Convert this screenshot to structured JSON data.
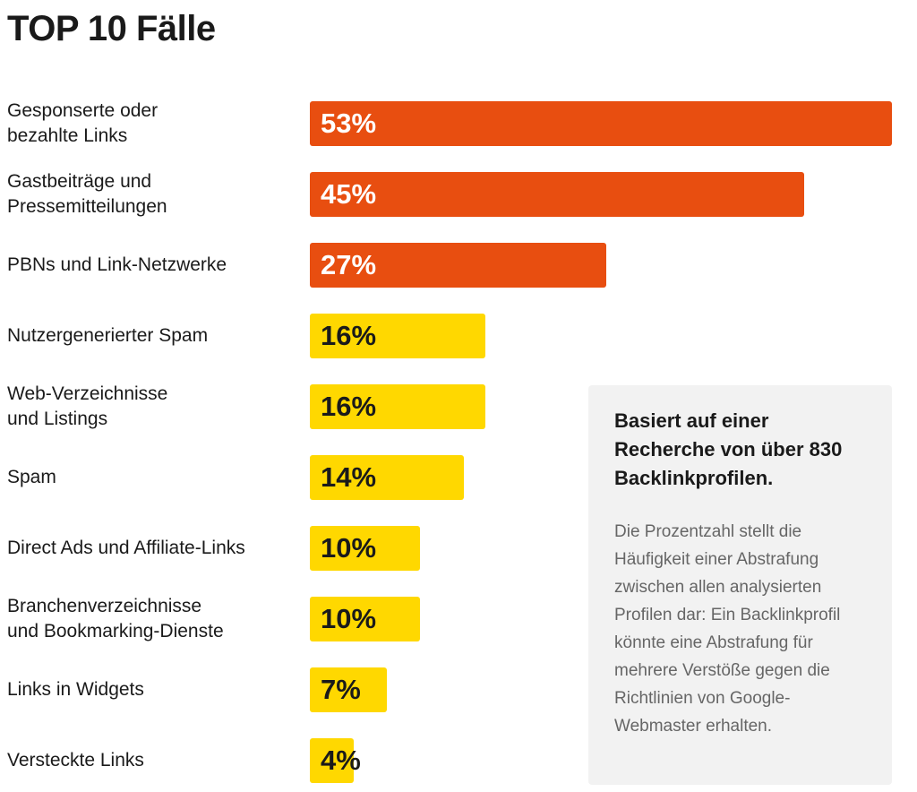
{
  "chart_data": {
    "type": "bar",
    "orientation": "horizontal",
    "title": "TOP 10 Fälle",
    "categories": [
      "Gesponserte oder\nbezahlte Links",
      "Gastbeiträge und\nPressemitteilungen",
      "PBNs und Link-Netzwerke",
      "Nutzergenerierter Spam",
      "Web-Verzeichnisse\nund Listings",
      "Spam",
      "Direct Ads und Affiliate-Links",
      "Branchenverzeichnisse\nund Bookmarking-Dienste",
      "Links in Widgets",
      "Versteckte Links"
    ],
    "values": [
      53,
      45,
      27,
      16,
      16,
      14,
      10,
      10,
      7,
      4
    ],
    "value_labels": [
      "53%",
      "45%",
      "27%",
      "16%",
      "16%",
      "14%",
      "10%",
      "10%",
      "7%",
      "4%"
    ],
    "colors": [
      "#e84e10",
      "#e84e10",
      "#e84e10",
      "#ffd800",
      "#ffd800",
      "#ffd800",
      "#ffd800",
      "#ffd800",
      "#ffd800",
      "#ffd800"
    ],
    "note": {
      "title": "Basiert auf einer Recherche von über 830 Backlinkprofilen.",
      "text": "Die Prozentzahl stellt die Häufigkeit einer Abstrafung zwischen allen analysierten Profilen dar: Ein Backlinkprofil könnte eine Abstrafung für mehrere Verstöße gegen die Richtlinien von Google-Webmaster erhalten."
    }
  }
}
